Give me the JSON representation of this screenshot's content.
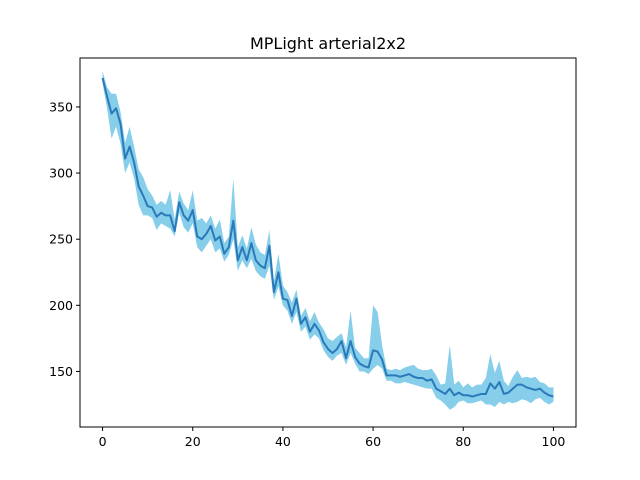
{
  "chart_data": {
    "type": "line",
    "title": "MPLight arterial2x2",
    "xlabel": "",
    "ylabel": "",
    "xlim": [
      -5,
      105
    ],
    "ylim": [
      108,
      387
    ],
    "xticks": [
      0,
      20,
      40,
      60,
      80,
      100
    ],
    "yticks": [
      150,
      200,
      250,
      300,
      350
    ],
    "grid": false,
    "colors": {
      "line": "#2a7ab9",
      "band": "#87ceeb",
      "axis": "#000000"
    },
    "series": [
      {
        "x": [
          0,
          1,
          2,
          3,
          4,
          5,
          6,
          7,
          8,
          9,
          10,
          11,
          12,
          13,
          14,
          15,
          16,
          17,
          18,
          19,
          20,
          21,
          22,
          23,
          24,
          25,
          26,
          27,
          28,
          29,
          30,
          31,
          32,
          33,
          34,
          35,
          36,
          37,
          38,
          39,
          40,
          41,
          42,
          43,
          44,
          45,
          46,
          47,
          48,
          49,
          50,
          51,
          52,
          53,
          54,
          55,
          56,
          57,
          58,
          59,
          60,
          61,
          62,
          63,
          64,
          65,
          66,
          67,
          68,
          69,
          70,
          71,
          72,
          73,
          74,
          75,
          76,
          77,
          78,
          79,
          80,
          81,
          82,
          83,
          84,
          85,
          86,
          87,
          88,
          89,
          90,
          91,
          92,
          93,
          94,
          95,
          96,
          97,
          98,
          99,
          100
        ],
        "values": [
          372,
          358,
          345,
          349,
          337,
          311,
          320,
          308,
          290,
          283,
          275,
          274,
          267,
          270,
          268,
          268,
          256,
          278,
          268,
          264,
          272,
          252,
          250,
          254,
          260,
          249,
          252,
          239,
          244,
          264,
          234,
          244,
          234,
          247,
          234,
          230,
          228,
          245,
          210,
          225,
          205,
          204,
          192,
          205,
          186,
          191,
          180,
          186,
          181,
          172,
          167,
          164,
          167,
          173,
          160,
          173,
          161,
          156,
          154,
          153,
          166,
          165,
          159,
          147,
          147,
          147,
          146,
          147,
          148,
          146,
          145,
          145,
          143,
          144,
          137,
          135,
          133,
          137,
          132,
          134,
          132,
          132,
          131,
          132,
          133,
          133,
          141,
          137,
          142,
          133,
          134,
          137,
          140,
          140,
          138,
          137,
          136,
          137,
          134,
          132,
          131
        ],
        "lower": [
          368,
          349,
          326,
          335,
          322,
          300,
          308,
          296,
          276,
          268,
          268,
          266,
          257,
          262,
          260,
          258,
          252,
          270,
          259,
          255,
          262,
          244,
          240,
          245,
          250,
          240,
          243,
          233,
          238,
          250,
          226,
          234,
          228,
          235,
          226,
          222,
          220,
          230,
          204,
          214,
          200,
          196,
          186,
          195,
          180,
          184,
          174,
          178,
          175,
          166,
          161,
          158,
          162,
          164,
          155,
          164,
          156,
          150,
          150,
          148,
          152,
          155,
          152,
          143,
          143,
          141,
          141,
          142,
          141,
          140,
          139,
          138,
          137,
          137,
          130,
          128,
          125,
          121,
          123,
          127,
          128,
          126,
          126,
          127,
          128,
          125,
          125,
          123,
          127,
          125,
          127,
          126,
          127,
          129,
          128,
          126,
          129,
          130,
          127,
          125,
          127
        ],
        "upper": [
          377,
          365,
          360,
          360,
          346,
          323,
          335,
          320,
          303,
          297,
          288,
          283,
          276,
          279,
          276,
          287,
          265,
          286,
          277,
          272,
          287,
          264,
          266,
          262,
          268,
          258,
          265,
          247,
          252,
          296,
          244,
          253,
          243,
          259,
          246,
          240,
          238,
          257,
          218,
          239,
          215,
          210,
          202,
          212,
          192,
          198,
          188,
          195,
          187,
          182,
          175,
          173,
          176,
          179,
          168,
          196,
          168,
          164,
          160,
          160,
          200,
          195,
          170,
          152,
          151,
          152,
          151,
          153,
          154,
          155,
          152,
          151,
          151,
          152,
          147,
          140,
          141,
          170,
          140,
          143,
          138,
          141,
          138,
          140,
          140,
          145,
          163,
          149,
          158,
          143,
          139,
          146,
          151,
          145,
          146,
          145,
          146,
          142,
          141,
          138,
          138
        ]
      }
    ]
  }
}
